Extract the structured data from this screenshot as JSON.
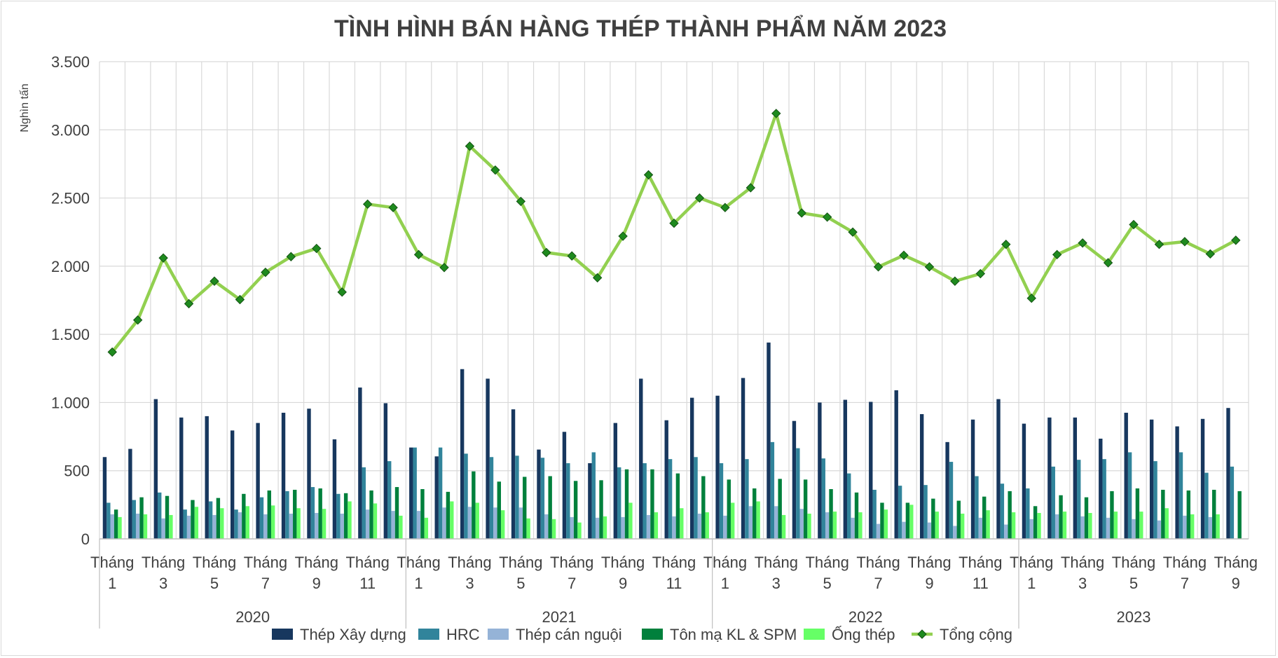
{
  "chart_data": {
    "type": "bar",
    "title": "TÌNH HÌNH BÁN HÀNG THÉP THÀNH PHẨM NĂM 2023",
    "ylabel": "Nghìn tấn",
    "ylim": [
      0,
      3500
    ],
    "yticks": [
      {
        "value": 0,
        "label": "0"
      },
      {
        "value": 500,
        "label": "500"
      },
      {
        "value": 1000,
        "label": "1.000"
      },
      {
        "value": 1500,
        "label": "1.500"
      },
      {
        "value": 2000,
        "label": "2.000"
      },
      {
        "value": 2500,
        "label": "2.500"
      },
      {
        "value": 3000,
        "label": "3.000"
      },
      {
        "value": 3500,
        "label": "3.500"
      }
    ],
    "grid": true,
    "legend_position": "bottom",
    "years": [
      {
        "label": "2020",
        "months": 12
      },
      {
        "label": "2021",
        "months": 12
      },
      {
        "label": "2022",
        "months": 12
      },
      {
        "label": "2023",
        "months": 9
      }
    ],
    "x_tick_labels": [
      {
        "index": 0,
        "line1": "Tháng",
        "line2": "1"
      },
      {
        "index": 2,
        "line1": "Tháng",
        "line2": "3"
      },
      {
        "index": 4,
        "line1": "Tháng",
        "line2": "5"
      },
      {
        "index": 6,
        "line1": "Tháng",
        "line2": "7"
      },
      {
        "index": 8,
        "line1": "Tháng",
        "line2": "9"
      },
      {
        "index": 10,
        "line1": "Tháng",
        "line2": "11"
      },
      {
        "index": 12,
        "line1": "Tháng",
        "line2": "1"
      },
      {
        "index": 14,
        "line1": "Tháng",
        "line2": "3"
      },
      {
        "index": 16,
        "line1": "Tháng",
        "line2": "5"
      },
      {
        "index": 18,
        "line1": "Tháng",
        "line2": "7"
      },
      {
        "index": 20,
        "line1": "Tháng",
        "line2": "9"
      },
      {
        "index": 22,
        "line1": "Tháng",
        "line2": "11"
      },
      {
        "index": 24,
        "line1": "Tháng",
        "line2": "1"
      },
      {
        "index": 26,
        "line1": "Tháng",
        "line2": "3"
      },
      {
        "index": 28,
        "line1": "Tháng",
        "line2": "5"
      },
      {
        "index": 30,
        "line1": "Tháng",
        "line2": "7"
      },
      {
        "index": 32,
        "line1": "Tháng",
        "line2": "9"
      },
      {
        "index": 34,
        "line1": "Tháng",
        "line2": "11"
      },
      {
        "index": 36,
        "line1": "Tháng",
        "line2": "1"
      },
      {
        "index": 38,
        "line1": "Tháng",
        "line2": "3"
      },
      {
        "index": 40,
        "line1": "Tháng",
        "line2": "5"
      },
      {
        "index": 42,
        "line1": "Tháng",
        "line2": "7"
      },
      {
        "index": 44,
        "line1": "Tháng",
        "line2": "9"
      }
    ],
    "series": [
      {
        "name": "Thép Xây dựng",
        "type": "bar",
        "color": "#17375e",
        "values": [
          600,
          660,
          1025,
          890,
          900,
          795,
          850,
          925,
          955,
          730,
          1110,
          995,
          670,
          605,
          1245,
          1175,
          950,
          655,
          785,
          555,
          850,
          1175,
          870,
          1035,
          1050,
          1180,
          1440,
          865,
          1000,
          1020,
          1005,
          1090,
          915,
          710,
          875,
          1025,
          845,
          890,
          890,
          735,
          925,
          875,
          825,
          880,
          960
        ]
      },
      {
        "name": "HRC",
        "type": "bar",
        "color": "#31849b",
        "values": [
          265,
          285,
          340,
          215,
          275,
          215,
          305,
          350,
          380,
          330,
          525,
          570,
          670,
          670,
          625,
          600,
          610,
          595,
          555,
          635,
          525,
          555,
          585,
          600,
          555,
          585,
          710,
          665,
          590,
          480,
          360,
          390,
          395,
          565,
          460,
          405,
          370,
          530,
          580,
          585,
          635,
          570,
          635,
          485,
          530
        ]
      },
      {
        "name": "Thép cán nguội",
        "type": "bar",
        "color": "#95b3d7",
        "values": [
          180,
          185,
          150,
          170,
          175,
          195,
          180,
          185,
          190,
          185,
          215,
          205,
          205,
          230,
          235,
          230,
          230,
          180,
          160,
          155,
          160,
          175,
          165,
          185,
          170,
          240,
          240,
          220,
          195,
          155,
          110,
          125,
          120,
          95,
          155,
          105,
          145,
          180,
          165,
          155,
          145,
          135,
          170,
          160,
          0
        ]
      },
      {
        "name": "Tôn mạ KL & SPM",
        "type": "bar",
        "color": "#00803c",
        "values": [
          215,
          305,
          315,
          285,
          300,
          330,
          355,
          360,
          370,
          335,
          355,
          380,
          365,
          345,
          495,
          420,
          455,
          460,
          425,
          430,
          510,
          510,
          480,
          460,
          435,
          370,
          440,
          435,
          365,
          340,
          265,
          265,
          295,
          280,
          310,
          350,
          240,
          320,
          305,
          350,
          370,
          360,
          355,
          360,
          350
        ]
      },
      {
        "name": "Ống thép",
        "type": "bar",
        "color": "#66ff66",
        "values": [
          160,
          180,
          175,
          235,
          225,
          240,
          245,
          225,
          220,
          275,
          260,
          170,
          155,
          275,
          265,
          210,
          150,
          145,
          120,
          165,
          265,
          195,
          225,
          195,
          265,
          275,
          175,
          185,
          200,
          195,
          215,
          250,
          200,
          185,
          210,
          195,
          190,
          200,
          190,
          200,
          200,
          225,
          180,
          180,
          0
        ]
      },
      {
        "name": "Tổng cộng",
        "type": "line",
        "color": "#92d050",
        "marker_color": "#1e8a1e",
        "values": [
          1370,
          1605,
          2060,
          1725,
          1890,
          1755,
          1955,
          2070,
          2130,
          1810,
          2455,
          2430,
          2085,
          1990,
          2880,
          2705,
          2475,
          2100,
          2075,
          1915,
          2220,
          2670,
          2315,
          2500,
          2430,
          2575,
          3120,
          2390,
          2360,
          2250,
          1995,
          2080,
          1995,
          1890,
          1945,
          2160,
          1765,
          2085,
          2170,
          2025,
          2305,
          2160,
          2180,
          2090,
          2190
        ]
      }
    ]
  }
}
